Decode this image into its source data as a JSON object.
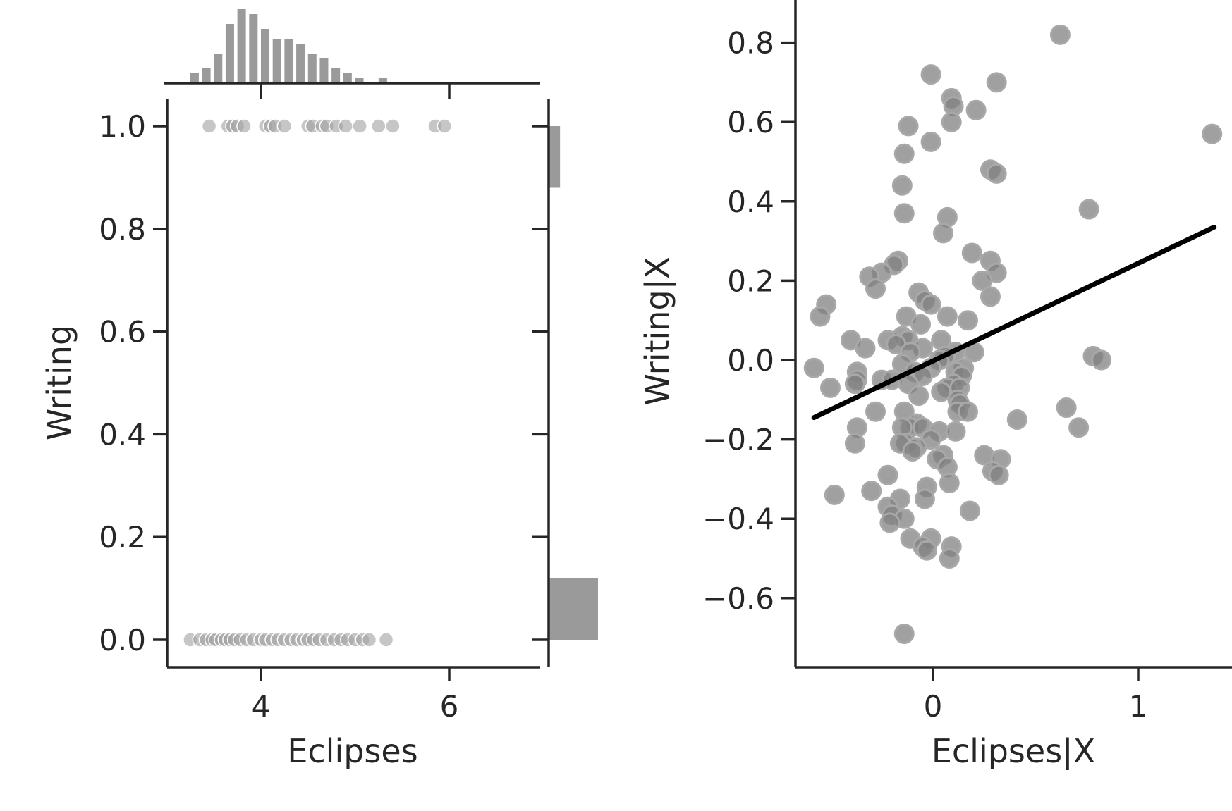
{
  "chart_data": [
    {
      "type": "scatter",
      "panel": "joint-left",
      "xlabel": "Eclipses",
      "ylabel": "Writing",
      "xlim": [
        3.0,
        7.5
      ],
      "ylim": [
        -0.05,
        1.05
      ],
      "x_ticks": [
        4,
        6
      ],
      "y_ticks": [
        0.0,
        0.2,
        0.4,
        0.6,
        0.8,
        1.0
      ],
      "x_tick_labels": [
        "4",
        "6"
      ],
      "y_tick_labels": [
        "0.0",
        "0.2",
        "0.4",
        "0.6",
        "0.8",
        "1.0"
      ],
      "points_color": "#a0a0a0",
      "points": [
        [
          3.45,
          1
        ],
        [
          3.65,
          1
        ],
        [
          3.7,
          1
        ],
        [
          3.75,
          1
        ],
        [
          3.82,
          1
        ],
        [
          4.05,
          1
        ],
        [
          4.1,
          1
        ],
        [
          4.15,
          1
        ],
        [
          4.25,
          1
        ],
        [
          4.5,
          1
        ],
        [
          4.55,
          1
        ],
        [
          4.65,
          1
        ],
        [
          4.7,
          1
        ],
        [
          4.8,
          1
        ],
        [
          4.9,
          1
        ],
        [
          5.05,
          1
        ],
        [
          5.25,
          1
        ],
        [
          5.4,
          1
        ],
        [
          5.85,
          1
        ],
        [
          5.95,
          1
        ],
        [
          3.25,
          0
        ],
        [
          3.35,
          0
        ],
        [
          3.42,
          0
        ],
        [
          3.48,
          0
        ],
        [
          3.52,
          0
        ],
        [
          3.58,
          0
        ],
        [
          3.62,
          0
        ],
        [
          3.67,
          0
        ],
        [
          3.72,
          0
        ],
        [
          3.78,
          0
        ],
        [
          3.85,
          0
        ],
        [
          3.92,
          0
        ],
        [
          4.0,
          0
        ],
        [
          4.05,
          0
        ],
        [
          4.12,
          0
        ],
        [
          4.18,
          0
        ],
        [
          4.25,
          0
        ],
        [
          4.32,
          0
        ],
        [
          4.38,
          0
        ],
        [
          4.45,
          0
        ],
        [
          4.5,
          0
        ],
        [
          4.56,
          0
        ],
        [
          4.62,
          0
        ],
        [
          4.7,
          0
        ],
        [
          4.78,
          0
        ],
        [
          4.85,
          0
        ],
        [
          4.92,
          0
        ],
        [
          5.0,
          0
        ],
        [
          5.08,
          0
        ],
        [
          5.15,
          0
        ],
        [
          5.33,
          0
        ]
      ],
      "marginal_x_histogram": {
        "color": "#9a9a9a",
        "bin_start": 3.25,
        "bin_width": 0.125,
        "counts": [
          2,
          3,
          6,
          12,
          15,
          14,
          11,
          9,
          9,
          8,
          6,
          5,
          3,
          2,
          1,
          0,
          1
        ]
      },
      "marginal_y_histogram": {
        "color": "#9a9a9a",
        "bins": [
          {
            "from": 0.0,
            "to": 0.12,
            "count": 130
          },
          {
            "from": 0.88,
            "to": 1.0,
            "count": 30
          }
        ]
      }
    },
    {
      "type": "scatter",
      "panel": "added-variable-right",
      "xlabel": "Eclipses|X",
      "ylabel": "Writing|X",
      "xlim": [
        -0.67,
        1.45
      ],
      "ylim": [
        -0.78,
        0.9
      ],
      "x_ticks": [
        0,
        1
      ],
      "y_ticks": [
        -0.6,
        -0.4,
        -0.2,
        0.0,
        0.2,
        0.4,
        0.6,
        0.8
      ],
      "x_tick_labels": [
        "0",
        "1"
      ],
      "y_tick_labels": [
        "−0.6",
        "−0.4",
        "−0.2",
        "0.0",
        "0.2",
        "0.4",
        "0.6",
        "0.8"
      ],
      "points_color": "#808080",
      "fit_line": {
        "x": [
          -0.58,
          1.37
        ],
        "y": [
          -0.145,
          0.335
        ],
        "color": "#000000"
      },
      "points": [
        [
          0.62,
          0.82
        ],
        [
          -0.01,
          0.72
        ],
        [
          0.31,
          0.7
        ],
        [
          1.36,
          0.57
        ],
        [
          0.09,
          0.66
        ],
        [
          0.1,
          0.64
        ],
        [
          0.21,
          0.63
        ],
        [
          -0.12,
          0.59
        ],
        [
          0.09,
          0.6
        ],
        [
          -0.01,
          0.55
        ],
        [
          -0.14,
          0.52
        ],
        [
          0.28,
          0.48
        ],
        [
          0.31,
          0.47
        ],
        [
          -0.15,
          0.44
        ],
        [
          0.76,
          0.38
        ],
        [
          -0.14,
          0.37
        ],
        [
          0.07,
          0.36
        ],
        [
          0.05,
          0.32
        ],
        [
          0.19,
          0.27
        ],
        [
          -0.17,
          0.25
        ],
        [
          0.28,
          0.25
        ],
        [
          -0.19,
          0.24
        ],
        [
          0.31,
          0.22
        ],
        [
          -0.25,
          0.22
        ],
        [
          -0.31,
          0.21
        ],
        [
          0.24,
          0.2
        ],
        [
          -0.28,
          0.18
        ],
        [
          -0.07,
          0.17
        ],
        [
          0.28,
          0.16
        ],
        [
          -0.04,
          0.15
        ],
        [
          -0.01,
          0.14
        ],
        [
          -0.52,
          0.14
        ],
        [
          -0.55,
          0.11
        ],
        [
          -0.13,
          0.11
        ],
        [
          0.07,
          0.11
        ],
        [
          0.17,
          0.1
        ],
        [
          -0.06,
          0.09
        ],
        [
          -0.4,
          0.05
        ],
        [
          -0.22,
          0.05
        ],
        [
          -0.15,
          0.06
        ],
        [
          -0.12,
          0.05
        ],
        [
          -0.18,
          0.04
        ],
        [
          -0.05,
          0.03
        ],
        [
          0.04,
          0.05
        ],
        [
          -0.33,
          0.03
        ],
        [
          -0.11,
          0.02
        ],
        [
          0.2,
          0.02
        ],
        [
          0.11,
          0.02
        ],
        [
          0.06,
          0.01
        ],
        [
          0.03,
          0.0
        ],
        [
          -0.15,
          -0.01
        ],
        [
          0.78,
          0.01
        ],
        [
          0.82,
          0.0
        ],
        [
          -0.01,
          -0.02
        ],
        [
          0.15,
          -0.02
        ],
        [
          -0.58,
          -0.02
        ],
        [
          -0.37,
          -0.03
        ],
        [
          -0.09,
          -0.03
        ],
        [
          0.11,
          -0.03
        ],
        [
          0.14,
          -0.04
        ],
        [
          -0.05,
          -0.04
        ],
        [
          -0.37,
          -0.05
        ],
        [
          -0.25,
          -0.05
        ],
        [
          -0.2,
          -0.05
        ],
        [
          -0.38,
          -0.06
        ],
        [
          -0.5,
          -0.07
        ],
        [
          -0.12,
          -0.06
        ],
        [
          0.1,
          -0.06
        ],
        [
          0.07,
          -0.07
        ],
        [
          0.13,
          -0.07
        ],
        [
          0.04,
          -0.08
        ],
        [
          -0.07,
          -0.09
        ],
        [
          0.12,
          -0.1
        ],
        [
          0.13,
          -0.11
        ],
        [
          0.12,
          -0.13
        ],
        [
          -0.28,
          -0.13
        ],
        [
          -0.14,
          -0.13
        ],
        [
          0.17,
          -0.13
        ],
        [
          0.65,
          -0.12
        ],
        [
          0.41,
          -0.15
        ],
        [
          -0.37,
          -0.17
        ],
        [
          -0.08,
          -0.16
        ],
        [
          -0.11,
          -0.17
        ],
        [
          -0.05,
          -0.17
        ],
        [
          -0.15,
          -0.17
        ],
        [
          0.03,
          -0.18
        ],
        [
          -0.01,
          -0.2
        ],
        [
          0.11,
          -0.18
        ],
        [
          0.71,
          -0.17
        ],
        [
          -0.38,
          -0.21
        ],
        [
          -0.13,
          -0.21
        ],
        [
          -0.16,
          -0.21
        ],
        [
          -0.08,
          -0.22
        ],
        [
          -0.1,
          -0.23
        ],
        [
          0.05,
          -0.24
        ],
        [
          0.02,
          -0.25
        ],
        [
          0.25,
          -0.24
        ],
        [
          0.33,
          -0.25
        ],
        [
          0.07,
          -0.27
        ],
        [
          0.29,
          -0.28
        ],
        [
          0.32,
          -0.29
        ],
        [
          -0.22,
          -0.29
        ],
        [
          0.08,
          -0.31
        ],
        [
          -0.03,
          -0.32
        ],
        [
          -0.48,
          -0.34
        ],
        [
          -0.3,
          -0.33
        ],
        [
          -0.16,
          -0.35
        ],
        [
          -0.04,
          -0.35
        ],
        [
          -0.22,
          -0.37
        ],
        [
          -0.2,
          -0.39
        ],
        [
          -0.14,
          -0.4
        ],
        [
          0.18,
          -0.38
        ],
        [
          -0.21,
          -0.41
        ],
        [
          -0.11,
          -0.45
        ],
        [
          -0.01,
          -0.45
        ],
        [
          0.09,
          -0.47
        ],
        [
          -0.05,
          -0.47
        ],
        [
          -0.03,
          -0.48
        ],
        [
          0.08,
          -0.5
        ],
        [
          -0.14,
          -0.69
        ]
      ]
    }
  ]
}
